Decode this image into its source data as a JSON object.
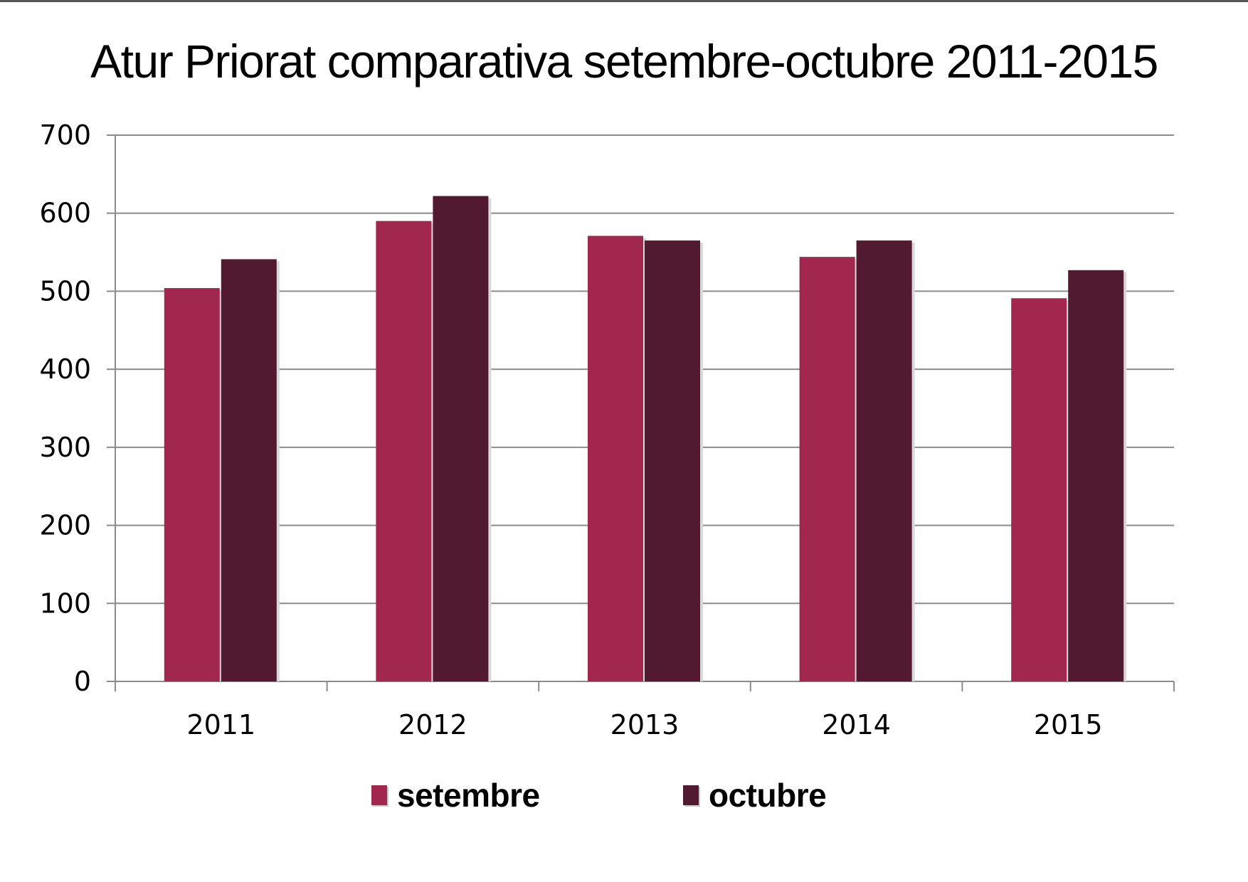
{
  "chart_data": {
    "type": "bar",
    "title": "Atur  Priorat comparativa setembre-octubre 2011-2015",
    "xlabel": "",
    "ylabel": "",
    "categories": [
      "2011",
      "2012",
      "2013",
      "2014",
      "2015"
    ],
    "series": [
      {
        "name": "setembre",
        "color": "#A2274F",
        "values": [
          504,
          590,
          571,
          544,
          491
        ]
      },
      {
        "name": "octubre",
        "color": "#521A31",
        "values": [
          541,
          622,
          565,
          565,
          527
        ]
      }
    ],
    "ylim": [
      0,
      700
    ],
    "yticks": [
      0,
      100,
      200,
      300,
      400,
      500,
      600,
      700
    ],
    "grid": true,
    "legend_position": "bottom"
  }
}
